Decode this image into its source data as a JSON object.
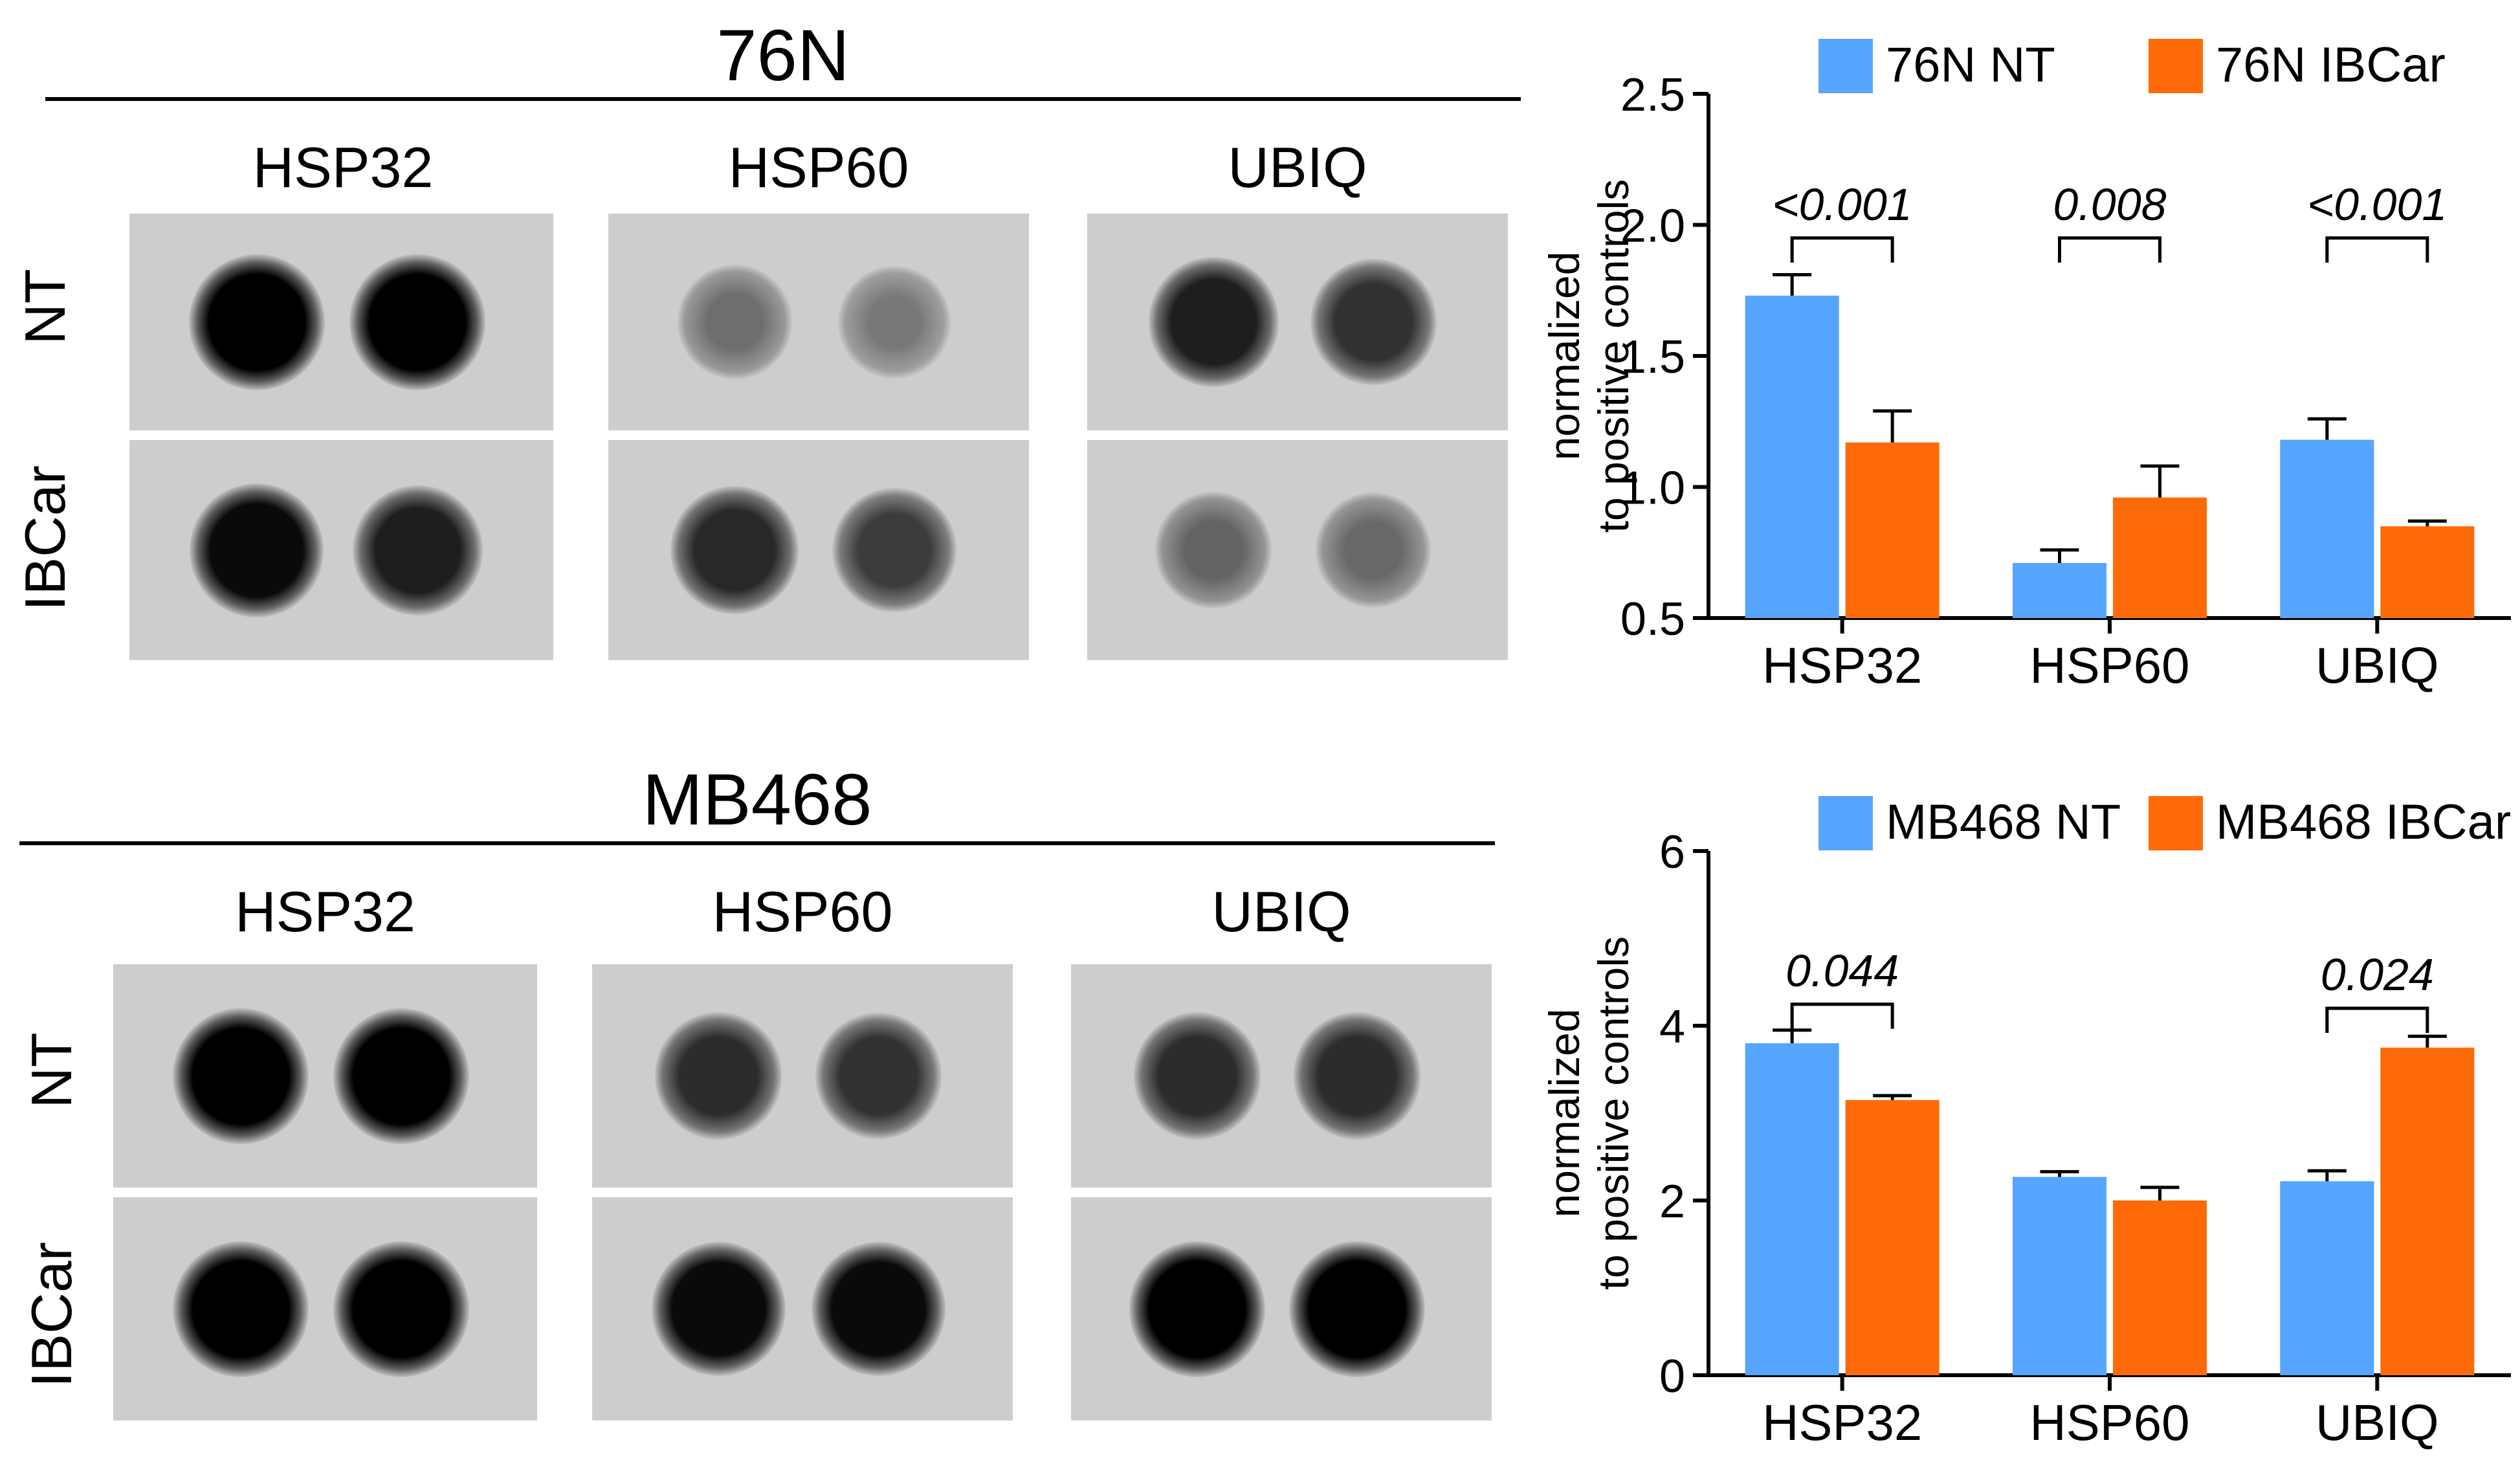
{
  "blot_panels": [
    {
      "title": "76N",
      "columns": [
        "HSP32",
        "HSP60",
        "UBIQ"
      ],
      "rows": [
        "NT",
        "IBCar"
      ],
      "dot_intensity": [
        [
          [
            1.0,
            1.0
          ],
          [
            0.45,
            0.4
          ],
          [
            0.85,
            0.75
          ]
        ],
        [
          [
            0.95,
            0.85
          ],
          [
            0.8,
            0.7
          ],
          [
            0.5,
            0.48
          ]
        ]
      ]
    },
    {
      "title": "MB468",
      "columns": [
        "HSP32",
        "HSP60",
        "UBIQ"
      ],
      "rows": [
        "NT",
        "IBCar"
      ],
      "dot_intensity": [
        [
          [
            1.0,
            1.0
          ],
          [
            0.78,
            0.75
          ],
          [
            0.78,
            0.78
          ]
        ],
        [
          [
            1.0,
            1.0
          ],
          [
            0.95,
            0.95
          ],
          [
            1.0,
            1.0
          ]
        ]
      ]
    }
  ],
  "chart_data": [
    {
      "type": "bar",
      "title": "",
      "xlabel": "",
      "ylabel_lines": [
        "normalized",
        "to positive controls"
      ],
      "categories": [
        "HSP32",
        "HSP60",
        "UBIQ"
      ],
      "series": [
        {
          "name": "76N NT",
          "color": "#56a5ff",
          "values": [
            1.73,
            0.71,
            1.18
          ],
          "errors": [
            0.08,
            0.05,
            0.08
          ]
        },
        {
          "name": "76N IBCar",
          "color": "#ff6a08",
          "values": [
            1.17,
            0.96,
            0.85
          ],
          "errors": [
            0.12,
            0.12,
            0.02
          ]
        }
      ],
      "ylim": [
        0.5,
        2.5
      ],
      "yticks": [
        "0.5",
        "1.0",
        "1.5",
        "2.0",
        "2.5"
      ],
      "legend_placement": "top",
      "grid": false,
      "annotations": [
        {
          "category": "HSP32",
          "text": "<0.001"
        },
        {
          "category": "HSP60",
          "text": "0.008"
        },
        {
          "category": "UBIQ",
          "text": "<0.001"
        }
      ]
    },
    {
      "type": "bar",
      "title": "",
      "xlabel": "",
      "ylabel_lines": [
        "normalized",
        "to positive controls"
      ],
      "categories": [
        "HSP32",
        "HSP60",
        "UBIQ"
      ],
      "series": [
        {
          "name": "MB468 NT",
          "color": "#56a5ff",
          "values": [
            3.8,
            2.27,
            2.22
          ],
          "errors": [
            0.15,
            0.06,
            0.12
          ]
        },
        {
          "name": "MB468 IBCar",
          "color": "#ff6a08",
          "values": [
            3.15,
            2.0,
            3.75
          ],
          "errors": [
            0.05,
            0.15,
            0.13
          ]
        }
      ],
      "ylim": [
        0,
        6
      ],
      "yticks": [
        "0",
        "2",
        "4",
        "6"
      ],
      "legend_placement": "top",
      "grid": false,
      "annotations": [
        {
          "category": "HSP32",
          "text": "0.044"
        },
        {
          "category": "UBIQ",
          "text": "0.024"
        }
      ]
    }
  ]
}
